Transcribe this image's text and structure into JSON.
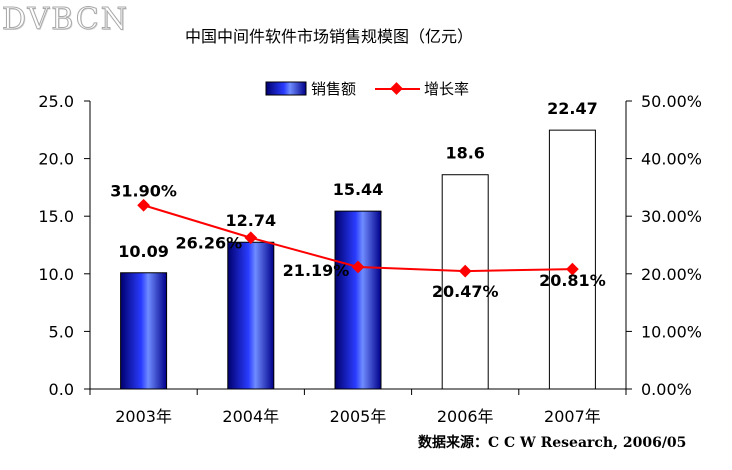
{
  "watermark": "DVBCN",
  "source": "数据来源：C C W  Research, 2006/05",
  "chart_data": {
    "type": "bar",
    "title": "中国中间件软件市场销售规模图（亿元）",
    "categories": [
      "2003年",
      "2004年",
      "2005年",
      "2006年",
      "2007年"
    ],
    "series": [
      {
        "name": "销售额",
        "kind": "bar",
        "axis": "left",
        "values": [
          10.09,
          12.74,
          15.44,
          18.6,
          22.47
        ],
        "labels": [
          "10.09",
          "12.74",
          "15.44",
          "18.6",
          "22.47"
        ],
        "filled": [
          true,
          true,
          true,
          false,
          false
        ]
      },
      {
        "name": "增长率",
        "kind": "line",
        "axis": "right",
        "values": [
          31.9,
          26.26,
          21.19,
          20.47,
          20.81
        ],
        "labels": [
          "31.90%",
          "26.26%",
          "21.19%",
          "20.47%",
          "20.81%"
        ]
      }
    ],
    "ylim": [
      0,
      25
    ],
    "yticks": [
      "0.0",
      "5.0",
      "10.0",
      "15.0",
      "20.0",
      "25.0"
    ],
    "y2lim": [
      0,
      50
    ],
    "y2ticks": [
      "0.00%",
      "10.00%",
      "20.00%",
      "30.00%",
      "40.00%",
      "50.00%"
    ],
    "grid": false,
    "legend_position": "top",
    "colors": {
      "bar": "#0a14c8",
      "bar_light": "#6f8cff",
      "bar_dark": "#00006e",
      "line": "#ff0000",
      "axis": "#000000"
    }
  }
}
